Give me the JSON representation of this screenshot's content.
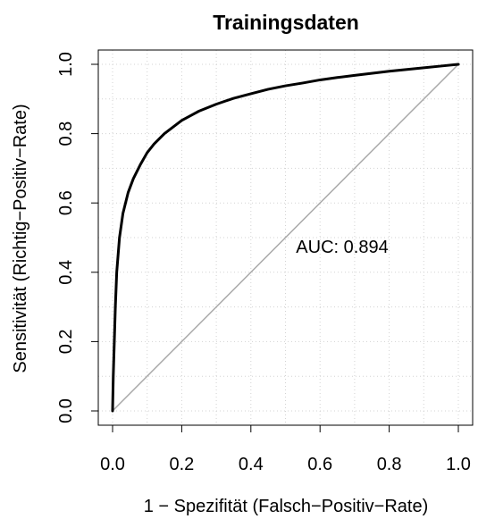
{
  "chart_data": {
    "type": "line",
    "title": "Trainingsdaten",
    "xlabel": "1 − Spezifität (Falsch−Positiv−Rate)",
    "ylabel": "Sensitivität (Richtig−Positiv−Rate)",
    "xlim": [
      0.0,
      1.0
    ],
    "ylim": [
      0.0,
      1.0
    ],
    "x_ticks": [
      "0.0",
      "0.2",
      "0.4",
      "0.6",
      "0.8",
      "1.0"
    ],
    "y_ticks": [
      "0.0",
      "0.2",
      "0.4",
      "0.6",
      "0.8",
      "1.0"
    ],
    "grid": true,
    "annotation": "AUC: 0.894",
    "colors": {
      "curve": "#000000",
      "diagonal": "#aaaaaa",
      "grid": "#d3d3d3"
    },
    "series": [
      {
        "role": "roc-curve",
        "x": [
          0.0,
          0.002,
          0.005,
          0.008,
          0.012,
          0.02,
          0.03,
          0.045,
          0.06,
          0.08,
          0.1,
          0.12,
          0.15,
          0.2,
          0.25,
          0.3,
          0.35,
          0.4,
          0.45,
          0.5,
          0.55,
          0.6,
          0.65,
          0.7,
          0.8,
          0.9,
          0.95,
          1.0
        ],
        "y": [
          0.0,
          0.1,
          0.2,
          0.3,
          0.4,
          0.5,
          0.57,
          0.63,
          0.67,
          0.71,
          0.745,
          0.77,
          0.8,
          0.838,
          0.865,
          0.885,
          0.902,
          0.915,
          0.928,
          0.938,
          0.946,
          0.955,
          0.962,
          0.968,
          0.98,
          0.99,
          0.995,
          1.0
        ]
      },
      {
        "role": "reference-diagonal",
        "x": [
          0.0,
          1.0
        ],
        "y": [
          0.0,
          1.0
        ]
      }
    ]
  }
}
